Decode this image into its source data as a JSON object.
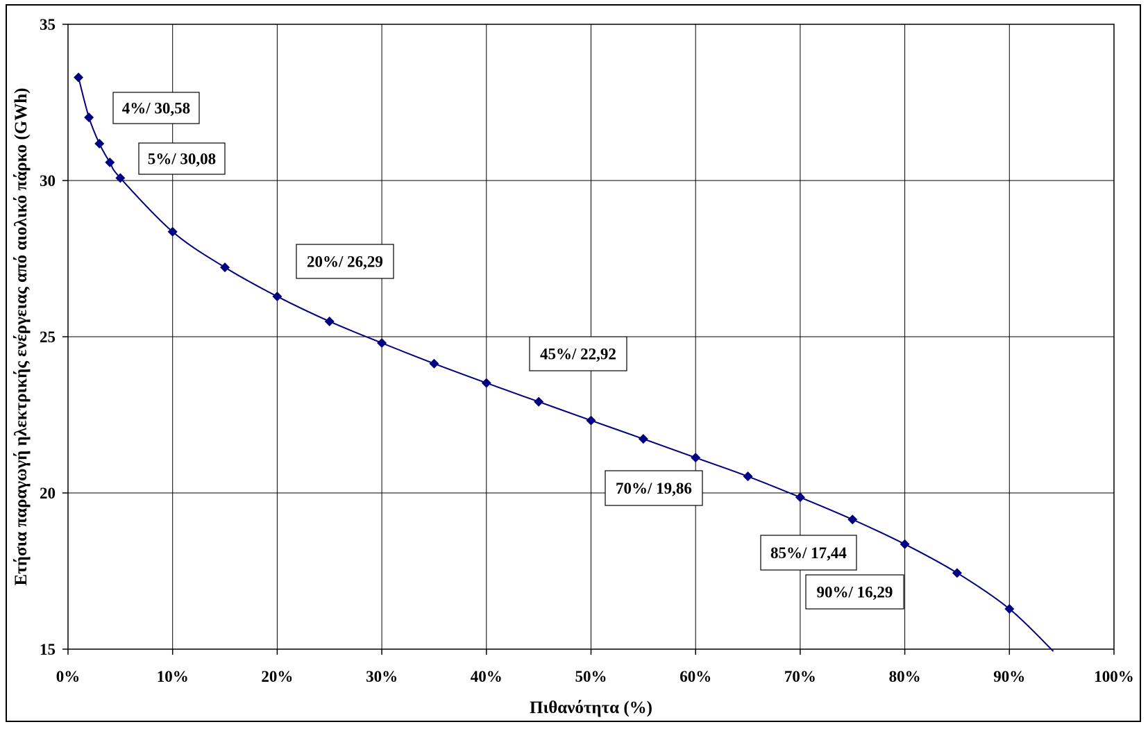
{
  "chart_data": {
    "type": "line",
    "title": "",
    "xlabel": "Πιθανότητα (%)",
    "ylabel": "Ετήσια παραγωγή ηλεκτρικής ενέργειας από αιολικό πάρκο (GWh)",
    "xlim": [
      0,
      100
    ],
    "ylim": [
      15,
      35
    ],
    "x_ticks": [
      0,
      10,
      20,
      30,
      40,
      50,
      60,
      70,
      80,
      90,
      100
    ],
    "x_tick_labels": [
      "0%",
      "10%",
      "20%",
      "30%",
      "40%",
      "50%",
      "60%",
      "70%",
      "80%",
      "90%",
      "100%"
    ],
    "y_ticks": [
      15,
      20,
      25,
      30,
      35
    ],
    "y_tick_labels": [
      "15",
      "20",
      "25",
      "30",
      "35"
    ],
    "grid": true,
    "legend": "none",
    "series": [
      {
        "color": "#000080",
        "marker": "diamond",
        "x": [
          1,
          2,
          3,
          4,
          5,
          10,
          15,
          20,
          25,
          30,
          35,
          40,
          45,
          50,
          55,
          60,
          65,
          70,
          75,
          80,
          85,
          90
        ],
        "y": [
          33.3,
          32.02,
          31.18,
          30.58,
          30.08,
          28.36,
          27.22,
          26.29,
          25.49,
          24.8,
          24.14,
          23.52,
          22.92,
          22.32,
          21.73,
          21.13,
          20.53,
          19.86,
          19.15,
          18.36,
          17.44,
          16.29
        ],
        "line_end": [
          94.2,
          14.8
        ]
      }
    ],
    "annotations": [
      {
        "text": "4%/ 30,58",
        "x": 4,
        "y": 30.58
      },
      {
        "text": "5%/ 30,08",
        "x": 5,
        "y": 30.08
      },
      {
        "text": "20%/ 26,29",
        "x": 20,
        "y": 26.29
      },
      {
        "text": "45%/ 22,92",
        "x": 45,
        "y": 22.92
      },
      {
        "text": "70%/ 19,86",
        "x": 70,
        "y": 19.86
      },
      {
        "text": "85%/ 17,44",
        "x": 85,
        "y": 17.44
      },
      {
        "text": "90%/ 16,29",
        "x": 90,
        "y": 16.29
      }
    ]
  }
}
